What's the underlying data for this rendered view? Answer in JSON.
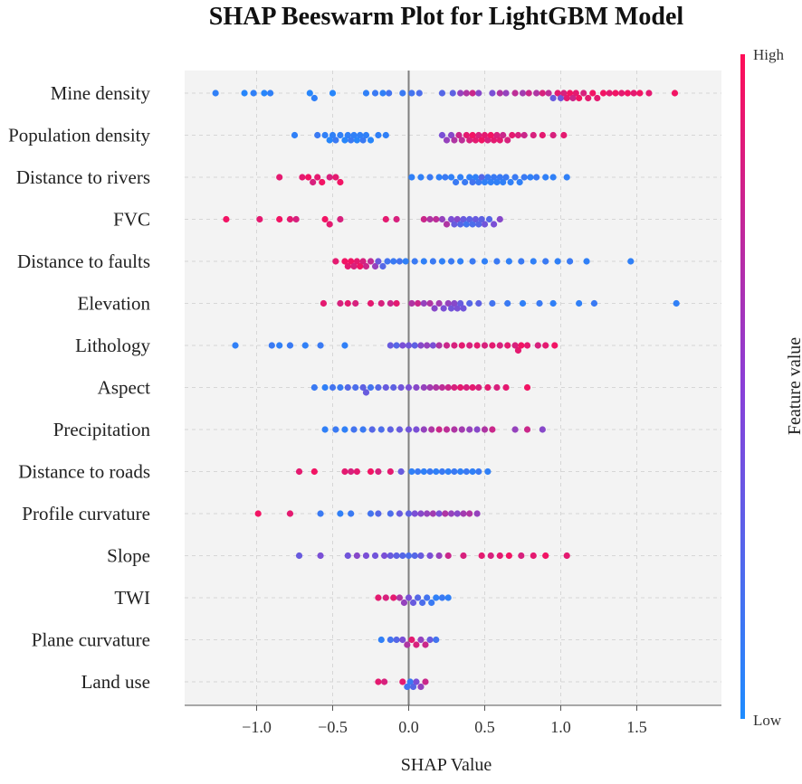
{
  "chart_data": {
    "type": "scatter",
    "subtype": "beeswarm",
    "title": "SHAP Beeswarm Plot for LightGBM Model",
    "xlabel": "SHAP Value",
    "colorbar": {
      "label": "Feature value",
      "high_label": "High",
      "low_label": "Low",
      "low_color": "#1e8cff",
      "high_color": "#ff0d57"
    },
    "xlim": [
      -1.43,
      1.83
    ],
    "xticks": [
      -1.0,
      -0.5,
      0.0,
      0.5,
      1.0,
      1.5
    ],
    "xtick_labels": [
      "−1.0",
      "−0.5",
      "0.0",
      "0.5",
      "1.0",
      "1.5"
    ],
    "grid": true,
    "background_color": "#f3f3f3",
    "features": [
      {
        "name": "Mine density",
        "shap": [
          -1.27,
          -1.08,
          -1.02,
          -0.95,
          -0.91,
          -0.65,
          -0.62,
          -0.5,
          -0.28,
          -0.22,
          -0.17,
          -0.13,
          -0.04,
          0.02,
          0.07,
          0.22,
          0.29,
          0.34,
          0.38,
          0.42,
          0.46,
          0.55,
          0.6,
          0.64,
          0.7,
          0.75,
          0.79,
          0.84,
          0.88,
          0.92,
          0.95,
          0.98,
          1.0,
          1.02,
          1.04,
          1.06,
          1.08,
          1.1,
          1.12,
          1.15,
          1.18,
          1.21,
          1.24,
          1.28,
          1.32,
          1.36,
          1.4,
          1.44,
          1.48,
          1.52,
          1.58,
          1.75
        ],
        "values": [
          0.1,
          0.05,
          0.1,
          0.05,
          0.1,
          0.05,
          0.1,
          0.05,
          0.1,
          0.15,
          0.1,
          0.2,
          0.15,
          0.2,
          0.25,
          0.3,
          0.35,
          0.6,
          0.7,
          0.8,
          0.55,
          0.5,
          0.7,
          0.6,
          0.75,
          0.65,
          0.8,
          0.7,
          0.85,
          0.75,
          0.4,
          0.9,
          0.45,
          0.85,
          0.9,
          0.95,
          0.8,
          0.9,
          0.95,
          0.85,
          0.9,
          0.95,
          0.9,
          0.95,
          0.9,
          0.95,
          0.9,
          0.95,
          0.9,
          0.95,
          0.9,
          0.95
        ]
      },
      {
        "name": "Population density",
        "shap": [
          -0.75,
          -0.6,
          -0.55,
          -0.52,
          -0.5,
          -0.48,
          -0.45,
          -0.42,
          -0.4,
          -0.38,
          -0.36,
          -0.34,
          -0.32,
          -0.3,
          -0.28,
          -0.25,
          -0.2,
          -0.15,
          0.22,
          0.25,
          0.28,
          0.3,
          0.33,
          0.35,
          0.38,
          0.4,
          0.42,
          0.44,
          0.46,
          0.48,
          0.5,
          0.52,
          0.54,
          0.56,
          0.58,
          0.6,
          0.62,
          0.65,
          0.68,
          0.72,
          0.76,
          0.82,
          0.88,
          0.95,
          1.02
        ],
        "values": [
          0.1,
          0.15,
          0.1,
          0.05,
          0.1,
          0.15,
          0.1,
          0.05,
          0.1,
          0.15,
          0.1,
          0.05,
          0.1,
          0.15,
          0.1,
          0.05,
          0.1,
          0.1,
          0.5,
          0.6,
          0.55,
          0.7,
          0.8,
          0.75,
          0.9,
          0.85,
          0.95,
          0.9,
          0.85,
          0.95,
          0.9,
          0.85,
          0.95,
          0.9,
          0.85,
          0.9,
          0.8,
          0.85,
          0.9,
          0.85,
          0.8,
          0.85,
          0.9,
          0.85,
          0.9
        ]
      },
      {
        "name": "Distance to rivers",
        "shap": [
          -0.85,
          -0.7,
          -0.66,
          -0.63,
          -0.6,
          -0.57,
          -0.52,
          -0.48,
          -0.45,
          0.02,
          0.08,
          0.14,
          0.2,
          0.24,
          0.28,
          0.31,
          0.34,
          0.37,
          0.4,
          0.42,
          0.44,
          0.46,
          0.48,
          0.5,
          0.52,
          0.54,
          0.56,
          0.58,
          0.6,
          0.62,
          0.64,
          0.67,
          0.7,
          0.73,
          0.76,
          0.8,
          0.84,
          0.9,
          0.95,
          1.04
        ],
        "values": [
          0.9,
          0.9,
          0.95,
          0.85,
          0.9,
          0.95,
          0.85,
          0.9,
          0.95,
          0.1,
          0.1,
          0.15,
          0.1,
          0.15,
          0.1,
          0.15,
          0.1,
          0.15,
          0.1,
          0.2,
          0.1,
          0.15,
          0.3,
          0.1,
          0.15,
          0.1,
          0.15,
          0.1,
          0.15,
          0.1,
          0.15,
          0.1,
          0.15,
          0.1,
          0.15,
          0.1,
          0.15,
          0.1,
          0.1,
          0.1
        ]
      },
      {
        "name": "FVC",
        "shap": [
          -1.2,
          -0.98,
          -0.85,
          -0.78,
          -0.74,
          -0.55,
          -0.52,
          -0.45,
          -0.15,
          -0.08,
          0.1,
          0.14,
          0.18,
          0.22,
          0.25,
          0.28,
          0.3,
          0.32,
          0.34,
          0.36,
          0.38,
          0.4,
          0.42,
          0.44,
          0.46,
          0.48,
          0.5,
          0.53,
          0.56,
          0.6
        ],
        "values": [
          0.95,
          0.9,
          0.95,
          0.9,
          0.85,
          0.95,
          0.9,
          0.85,
          0.9,
          0.85,
          0.8,
          0.7,
          0.75,
          0.6,
          0.7,
          0.5,
          0.4,
          0.55,
          0.3,
          0.4,
          0.2,
          0.35,
          0.25,
          0.4,
          0.3,
          0.35,
          0.45,
          0.3,
          0.5,
          0.55
        ]
      },
      {
        "name": "Distance to faults",
        "shap": [
          -0.48,
          -0.42,
          -0.4,
          -0.38,
          -0.36,
          -0.34,
          -0.32,
          -0.3,
          -0.28,
          -0.25,
          -0.22,
          -0.2,
          -0.17,
          -0.14,
          -0.1,
          -0.06,
          -0.02,
          0.04,
          0.1,
          0.16,
          0.22,
          0.28,
          0.34,
          0.42,
          0.5,
          0.58,
          0.66,
          0.74,
          0.82,
          0.9,
          0.98,
          1.06,
          1.17,
          1.46
        ],
        "values": [
          0.9,
          0.95,
          0.9,
          0.95,
          0.85,
          0.9,
          0.95,
          0.85,
          0.8,
          0.75,
          0.6,
          0.4,
          0.3,
          0.2,
          0.15,
          0.2,
          0.1,
          0.15,
          0.1,
          0.15,
          0.1,
          0.15,
          0.1,
          0.15,
          0.1,
          0.15,
          0.1,
          0.15,
          0.1,
          0.15,
          0.1,
          0.15,
          0.1,
          0.1
        ]
      },
      {
        "name": "Elevation",
        "shap": [
          -0.56,
          -0.45,
          -0.4,
          -0.35,
          -0.25,
          -0.18,
          -0.12,
          -0.08,
          0.02,
          0.06,
          0.1,
          0.14,
          0.17,
          0.2,
          0.23,
          0.26,
          0.28,
          0.3,
          0.32,
          0.34,
          0.36,
          0.4,
          0.46,
          0.55,
          0.65,
          0.75,
          0.86,
          0.95,
          1.12,
          1.22,
          1.76
        ],
        "values": [
          0.9,
          0.85,
          0.9,
          0.85,
          0.9,
          0.85,
          0.8,
          0.9,
          0.7,
          0.8,
          0.6,
          0.7,
          0.55,
          0.65,
          0.5,
          0.6,
          0.45,
          0.55,
          0.5,
          0.4,
          0.45,
          0.3,
          0.35,
          0.2,
          0.15,
          0.1,
          0.15,
          0.1,
          0.1,
          0.15,
          0.1
        ]
      },
      {
        "name": "Lithology",
        "shap": [
          -1.14,
          -0.9,
          -0.85,
          -0.78,
          -0.68,
          -0.58,
          -0.42,
          -0.12,
          -0.08,
          -0.04,
          0.0,
          0.04,
          0.08,
          0.12,
          0.16,
          0.2,
          0.25,
          0.3,
          0.35,
          0.4,
          0.45,
          0.5,
          0.55,
          0.6,
          0.65,
          0.7,
          0.72,
          0.74,
          0.78,
          0.85,
          0.9,
          0.96
        ],
        "values": [
          0.1,
          0.15,
          0.1,
          0.15,
          0.1,
          0.15,
          0.1,
          0.4,
          0.3,
          0.5,
          0.45,
          0.35,
          0.55,
          0.6,
          0.5,
          0.7,
          0.8,
          0.85,
          0.9,
          0.85,
          0.9,
          0.85,
          0.9,
          0.85,
          0.9,
          0.85,
          0.9,
          0.95,
          0.9,
          0.85,
          0.9,
          0.95
        ]
      },
      {
        "name": "Aspect",
        "shap": [
          -0.62,
          -0.55,
          -0.5,
          -0.45,
          -0.4,
          -0.35,
          -0.3,
          -0.28,
          -0.25,
          -0.2,
          -0.15,
          -0.1,
          -0.05,
          0.0,
          0.05,
          0.1,
          0.14,
          0.18,
          0.22,
          0.26,
          0.3,
          0.34,
          0.38,
          0.42,
          0.46,
          0.52,
          0.58,
          0.64,
          0.78
        ],
        "values": [
          0.15,
          0.1,
          0.2,
          0.15,
          0.3,
          0.25,
          0.35,
          0.4,
          0.2,
          0.3,
          0.4,
          0.35,
          0.45,
          0.5,
          0.55,
          0.6,
          0.65,
          0.7,
          0.75,
          0.8,
          0.85,
          0.9,
          0.85,
          0.9,
          0.85,
          0.9,
          0.85,
          0.9,
          0.95
        ]
      },
      {
        "name": "Precipitation",
        "shap": [
          -0.55,
          -0.48,
          -0.42,
          -0.36,
          -0.3,
          -0.24,
          -0.18,
          -0.12,
          -0.06,
          0.0,
          0.05,
          0.1,
          0.15,
          0.2,
          0.25,
          0.3,
          0.35,
          0.4,
          0.45,
          0.5,
          0.55,
          0.7,
          0.78,
          0.88
        ],
        "values": [
          0.1,
          0.15,
          0.1,
          0.2,
          0.15,
          0.3,
          0.25,
          0.35,
          0.4,
          0.45,
          0.5,
          0.6,
          0.7,
          0.8,
          0.75,
          0.7,
          0.65,
          0.6,
          0.55,
          0.7,
          0.8,
          0.6,
          0.8,
          0.55
        ]
      },
      {
        "name": "Distance to roads",
        "shap": [
          -0.72,
          -0.62,
          -0.42,
          -0.38,
          -0.34,
          -0.25,
          -0.2,
          -0.12,
          -0.05,
          0.02,
          0.06,
          0.1,
          0.14,
          0.18,
          0.22,
          0.26,
          0.3,
          0.34,
          0.38,
          0.42,
          0.46,
          0.52
        ],
        "values": [
          0.9,
          0.95,
          0.9,
          0.85,
          0.9,
          0.95,
          0.85,
          0.9,
          0.4,
          0.1,
          0.15,
          0.1,
          0.15,
          0.1,
          0.15,
          0.1,
          0.15,
          0.1,
          0.15,
          0.1,
          0.15,
          0.1
        ]
      },
      {
        "name": "Profile curvature",
        "shap": [
          -0.99,
          -0.78,
          -0.58,
          -0.45,
          -0.38,
          -0.25,
          -0.2,
          -0.12,
          -0.06,
          0.0,
          0.04,
          0.08,
          0.12,
          0.16,
          0.2,
          0.24,
          0.28,
          0.32,
          0.36,
          0.4,
          0.45
        ],
        "values": [
          0.95,
          0.9,
          0.15,
          0.1,
          0.15,
          0.2,
          0.3,
          0.25,
          0.4,
          0.35,
          0.5,
          0.55,
          0.6,
          0.65,
          0.5,
          0.7,
          0.6,
          0.55,
          0.65,
          0.7,
          0.6
        ]
      },
      {
        "name": "Slope",
        "shap": [
          -0.72,
          -0.58,
          -0.4,
          -0.34,
          -0.28,
          -0.22,
          -0.16,
          -0.12,
          -0.08,
          -0.04,
          0.0,
          0.04,
          0.08,
          0.14,
          0.2,
          0.26,
          0.36,
          0.48,
          0.54,
          0.6,
          0.66,
          0.74,
          0.82,
          0.9,
          1.04
        ],
        "values": [
          0.4,
          0.5,
          0.45,
          0.55,
          0.5,
          0.45,
          0.5,
          0.4,
          0.35,
          0.3,
          0.25,
          0.3,
          0.4,
          0.5,
          0.6,
          0.8,
          0.85,
          0.9,
          0.85,
          0.9,
          0.95,
          0.85,
          0.9,
          0.95,
          0.9
        ]
      },
      {
        "name": "TWI",
        "shap": [
          -0.2,
          -0.15,
          -0.1,
          -0.06,
          -0.03,
          0.0,
          0.03,
          0.06,
          0.09,
          0.12,
          0.15,
          0.18,
          0.22,
          0.26
        ],
        "values": [
          0.9,
          0.85,
          0.9,
          0.7,
          0.6,
          0.5,
          0.4,
          0.3,
          0.25,
          0.2,
          0.15,
          0.1,
          0.15,
          0.1
        ]
      },
      {
        "name": "Plane curvature",
        "shap": [
          -0.18,
          -0.12,
          -0.08,
          -0.04,
          -0.01,
          0.02,
          0.05,
          0.08,
          0.11,
          0.14,
          0.18
        ],
        "values": [
          0.1,
          0.2,
          0.3,
          0.5,
          0.7,
          0.9,
          0.85,
          0.6,
          0.8,
          0.4,
          0.2
        ]
      },
      {
        "name": "Land use",
        "shap": [
          -0.2,
          -0.16,
          -0.04,
          -0.01,
          0.01,
          0.03,
          0.05,
          0.08,
          0.11
        ],
        "values": [
          0.9,
          0.85,
          0.9,
          0.2,
          0.15,
          0.3,
          0.5,
          0.6,
          0.8
        ]
      }
    ]
  }
}
